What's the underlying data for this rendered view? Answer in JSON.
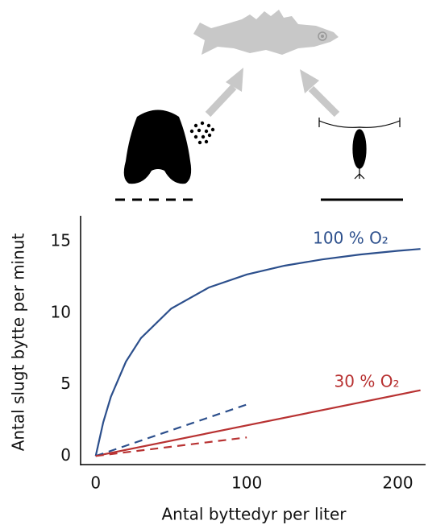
{
  "chart_data": {
    "type": "line",
    "x_label": "Antal byttedyr per liter",
    "y_label": "Antal slugt bytte per minut",
    "xlim": [
      -10,
      220
    ],
    "ylim": [
      -0.6,
      16.8
    ],
    "xticks": [
      0,
      100,
      200
    ],
    "yticks": [
      0,
      5,
      10,
      15
    ],
    "series": [
      {
        "color": "#2c4f8c",
        "linestyle": "solid",
        "x": [
          0,
          5,
          10,
          20,
          30,
          50,
          75,
          100,
          125,
          150,
          175,
          200,
          215
        ],
        "values": [
          0,
          2.36,
          4.13,
          6.6,
          8.25,
          10.31,
          11.79,
          12.69,
          13.31,
          13.75,
          14.09,
          14.35,
          14.48
        ]
      },
      {
        "color": "#b83232",
        "linestyle": "solid",
        "x": [
          0,
          215
        ],
        "values": [
          0,
          4.6
        ]
      },
      {
        "color": "#2c4f8c",
        "linestyle": "dashed",
        "x": [
          0,
          100
        ],
        "values": [
          0,
          3.6
        ]
      },
      {
        "color": "#b83232",
        "linestyle": "dashed",
        "x": [
          0,
          100
        ],
        "values": [
          0,
          1.3
        ]
      }
    ],
    "annotations": [
      {
        "text": "100 % O₂",
        "color": "#2c4f8c"
      },
      {
        "text": "30 % O₂",
        "color": "#b83232"
      }
    ]
  }
}
